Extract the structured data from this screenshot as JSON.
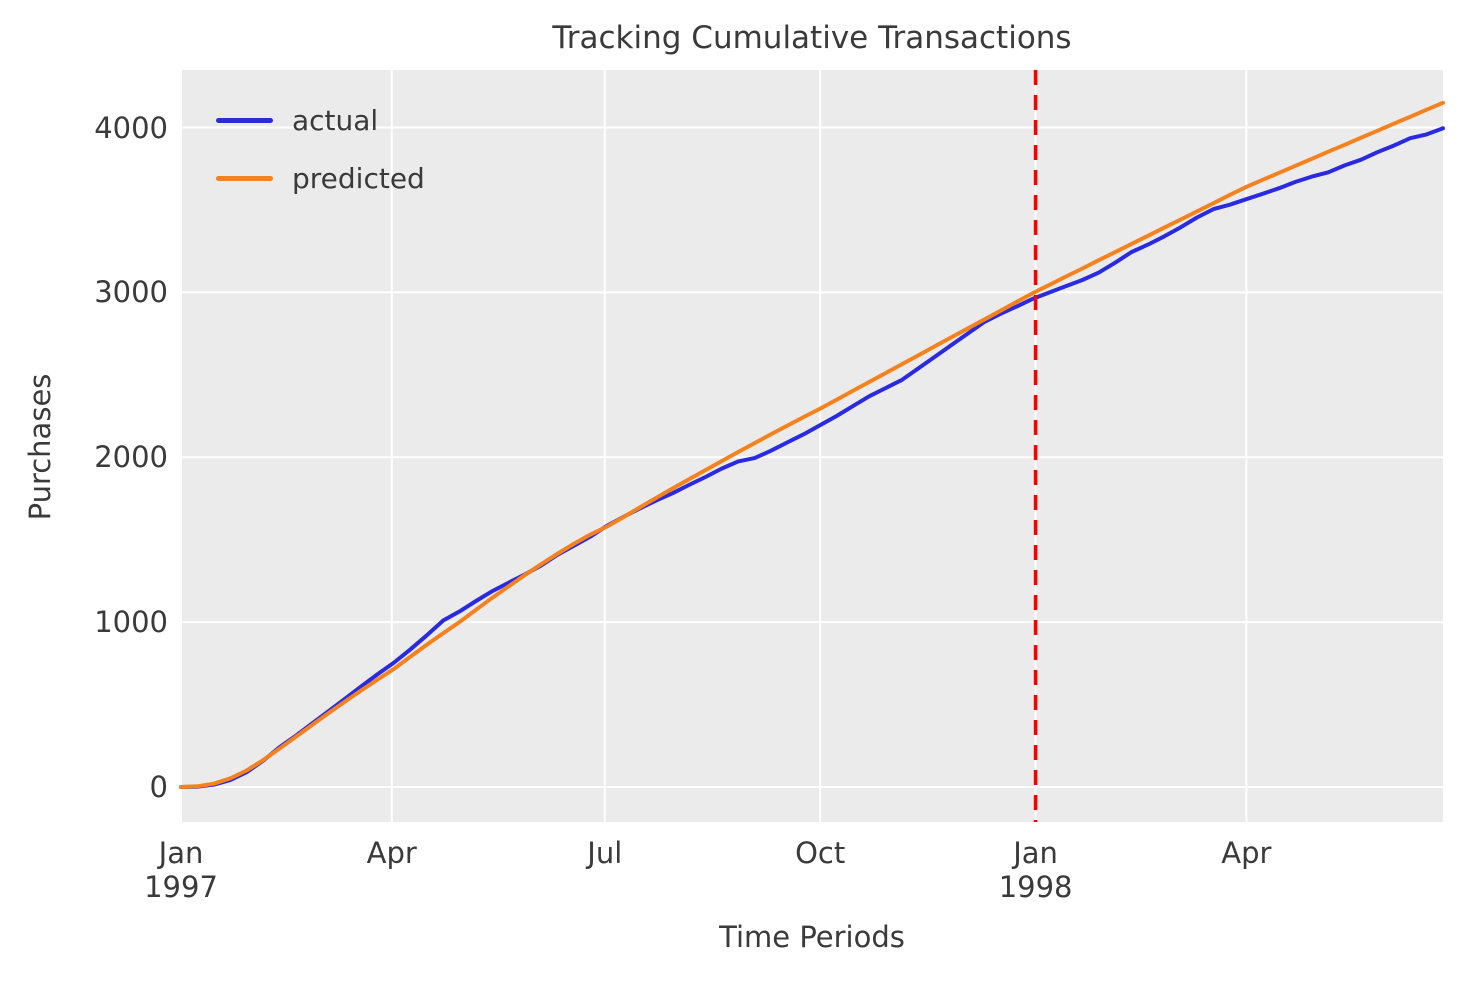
{
  "figure": {
    "title": "Tracking Cumulative Transactions",
    "xlabel": "Time Periods",
    "ylabel": "Purchases"
  },
  "legend": {
    "position": "upper left",
    "items": [
      {
        "label": "actual",
        "color": "#2a2ae0"
      },
      {
        "label": "predicted",
        "color": "#f5821e"
      }
    ]
  },
  "style": {
    "plot_background": "#ebebeb",
    "grid_color": "#ffffff",
    "text_color": "#3a3a3a",
    "vline_color": "#f40000"
  },
  "chart_data": {
    "type": "line",
    "title": "Tracking Cumulative Transactions",
    "xlabel": "Time Periods",
    "ylabel": "Purchases",
    "grid": true,
    "legend_position": "upper left",
    "sampling": "weekly cumulative totals",
    "x_axis": {
      "unit": "days since 1997-01-01",
      "range_days": [
        0,
        539
      ],
      "ticks": [
        {
          "label": "Jan",
          "sub": "1997",
          "day": 0
        },
        {
          "label": "Apr",
          "day": 90
        },
        {
          "label": "Jul",
          "day": 181
        },
        {
          "label": "Oct",
          "day": 273
        },
        {
          "label": "Jan",
          "sub": "1998",
          "day": 365
        },
        {
          "label": "Apr",
          "day": 455
        }
      ]
    },
    "y_axis": {
      "ticks": [
        {
          "label": "0",
          "value": 0
        },
        {
          "label": "1000",
          "value": 1000
        },
        {
          "label": "2000",
          "value": 2000
        },
        {
          "label": "3000",
          "value": 3000
        },
        {
          "label": "4000",
          "value": 4000
        }
      ],
      "range": [
        -212,
        4349
      ]
    },
    "vline": {
      "x_day": 365,
      "style": "dashed",
      "color": "#f40000"
    },
    "x_days": [
      0,
      7,
      14,
      21,
      28,
      35,
      42,
      49,
      56,
      63,
      70,
      77,
      84,
      91,
      98,
      105,
      112,
      119,
      126,
      133,
      140,
      147,
      154,
      161,
      168,
      175,
      182,
      189,
      196,
      203,
      210,
      217,
      224,
      231,
      238,
      245,
      252,
      259,
      266,
      273,
      280,
      287,
      294,
      301,
      308,
      315,
      322,
      329,
      336,
      343,
      350,
      357,
      364,
      371,
      378,
      385,
      392,
      399,
      406,
      413,
      420,
      427,
      434,
      441,
      448,
      455,
      462,
      469,
      476,
      483,
      490,
      497,
      504,
      511,
      518,
      525,
      532,
      539
    ],
    "series": [
      {
        "name": "actual",
        "color": "#2a2ae0",
        "values": [
          0,
          2,
          14,
          42,
          90,
          158,
          240,
          310,
          385,
          460,
          535,
          610,
          685,
          755,
          835,
          920,
          1010,
          1065,
          1128,
          1188,
          1240,
          1290,
          1345,
          1410,
          1465,
          1520,
          1585,
          1638,
          1690,
          1738,
          1782,
          1832,
          1880,
          1932,
          1975,
          1995,
          2040,
          2090,
          2140,
          2195,
          2250,
          2310,
          2370,
          2420,
          2470,
          2540,
          2610,
          2680,
          2750,
          2820,
          2870,
          2915,
          2962,
          3000,
          3038,
          3075,
          3120,
          3180,
          3245,
          3290,
          3340,
          3395,
          3455,
          3505,
          3532,
          3565,
          3598,
          3632,
          3670,
          3702,
          3728,
          3770,
          3805,
          3850,
          3890,
          3935,
          3958,
          3995
        ]
      },
      {
        "name": "predicted",
        "color": "#f5821e",
        "values": [
          0,
          4,
          20,
          52,
          100,
          162,
          232,
          304,
          376,
          448,
          518,
          586,
          652,
          717,
          791,
          863,
          933,
          1001,
          1075,
          1148,
          1218,
          1287,
          1353,
          1416,
          1477,
          1532,
          1580,
          1637,
          1696,
          1754,
          1811,
          1867,
          1922,
          1977,
          2032,
          2086,
          2139,
          2192,
          2244,
          2295,
          2349,
          2403,
          2457,
          2511,
          2565,
          2619,
          2673,
          2727,
          2781,
          2835,
          2889,
          2943,
          2997,
          3046,
          3096,
          3145,
          3195,
          3244,
          3294,
          3343,
          3393,
          3442,
          3492,
          3541,
          3591,
          3640,
          3683,
          3725,
          3768,
          3810,
          3853,
          3895,
          3938,
          3980,
          4023,
          4065,
          4108,
          4150
        ]
      }
    ]
  }
}
